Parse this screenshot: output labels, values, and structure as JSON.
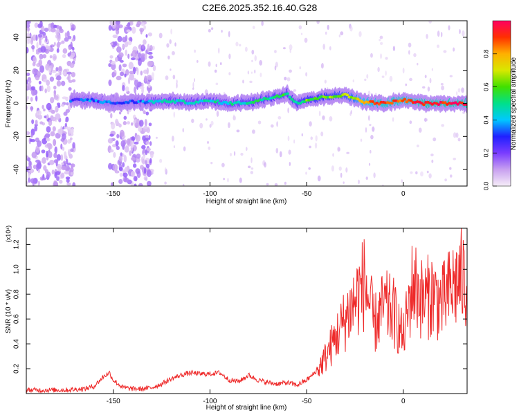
{
  "title": "C2E6.2025.352.16.40.G28",
  "chart_data": [
    {
      "type": "heatmap",
      "xlabel": "Height of straight line (km)",
      "ylabel": "Frequency (Hz)",
      "xlim": [
        -195,
        33
      ],
      "ylim": [
        -50,
        50
      ],
      "xticks": [
        -150,
        -100,
        -50,
        0
      ],
      "yticks": [
        -40,
        -20,
        0,
        20,
        40
      ],
      "colorbar": {
        "label": "Normalized spectral amplitude",
        "range": [
          0,
          1
        ],
        "ticks": [
          "0.0",
          "0.2",
          "0.4",
          "0.6",
          "0.8"
        ],
        "colormap": [
          "#f6eef8",
          "#c8a0f0",
          "#7a3cff",
          "#2020ff",
          "#00c8ff",
          "#00e08a",
          "#40e000",
          "#d8e800",
          "#ffb000",
          "#ff3000",
          "#ff0060"
        ]
      },
      "ridge": {
        "description": "dominant frequency trace",
        "x": [
          -172,
          -160,
          -150,
          -140,
          -130,
          -120,
          -110,
          -100,
          -90,
          -80,
          -70,
          -60,
          -55,
          -50,
          -40,
          -30,
          -25,
          -20,
          -10,
          0,
          10,
          20,
          33
        ],
        "frequency_hz": [
          2,
          2,
          0,
          1,
          1,
          1.5,
          0.5,
          1.5,
          0,
          0.5,
          3,
          6,
          0,
          2,
          4,
          5,
          3,
          1,
          0,
          2,
          0,
          0,
          0
        ],
        "amplitude": [
          0.3,
          0.35,
          0.3,
          0.3,
          0.4,
          0.45,
          0.45,
          0.45,
          0.45,
          0.5,
          0.5,
          0.55,
          0.5,
          0.6,
          0.6,
          0.65,
          0.7,
          0.85,
          0.9,
          0.9,
          0.95,
          0.95,
          0.95
        ]
      },
      "noise_bands": [
        {
          "x_range": [
            -195,
            -170
          ],
          "level": "broadband noise"
        },
        {
          "x_range": [
            -152,
            -130
          ],
          "level": "broadband noise"
        }
      ]
    },
    {
      "type": "line",
      "xlabel": "Height of straight line (km)",
      "ylabel": "SNR (10 * v/v)",
      "y_multiplier": "(x10⁴)",
      "xlim": [
        -195,
        33
      ],
      "ylim": [
        0,
        1.33
      ],
      "xticks": [
        -150,
        -100,
        -50,
        0
      ],
      "yticks": [
        "0.2",
        "0.4",
        "0.6",
        "0.8",
        "1.0",
        "1.2"
      ],
      "series": [
        {
          "color": "#ee2a2a",
          "x": [
            -195,
            -185,
            -175,
            -165,
            -160,
            -155,
            -152,
            -150,
            -145,
            -140,
            -135,
            -130,
            -125,
            -120,
            -115,
            -110,
            -105,
            -100,
            -95,
            -90,
            -85,
            -80,
            -75,
            -70,
            -65,
            -60,
            -55,
            -50,
            -45,
            -40,
            -35,
            -30,
            -25,
            -20,
            -15,
            -10,
            -5,
            0,
            5,
            10,
            15,
            20,
            25,
            30,
            33
          ],
          "values": [
            0.02,
            0.02,
            0.02,
            0.03,
            0.05,
            0.13,
            0.16,
            0.1,
            0.04,
            0.03,
            0.03,
            0.04,
            0.07,
            0.11,
            0.14,
            0.16,
            0.15,
            0.15,
            0.16,
            0.1,
            0.09,
            0.14,
            0.1,
            0.08,
            0.07,
            0.08,
            0.06,
            0.1,
            0.17,
            0.3,
            0.45,
            0.6,
            0.75,
            0.9,
            0.55,
            0.7,
            0.65,
            0.45,
            0.9,
            0.75,
            0.8,
            0.72,
            0.85,
            0.93,
            0.88
          ]
        }
      ]
    }
  ]
}
